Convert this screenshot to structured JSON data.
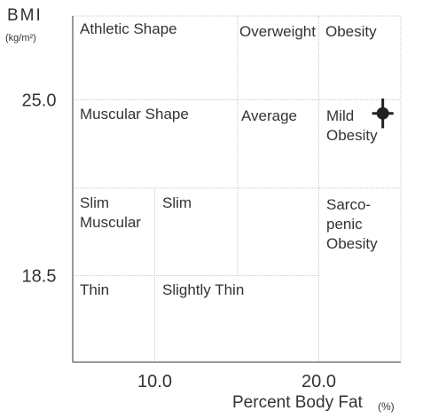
{
  "chart_data": {
    "type": "scatter",
    "y_label": "BMI",
    "y_unit": "(kg/m²)",
    "x_label": "Percent Body Fat",
    "x_unit": "(%)",
    "xlim": [
      5,
      25
    ],
    "ylim": [
      15.3,
      28.1
    ],
    "xticks": [
      {
        "value": 10,
        "label": "10.0"
      },
      {
        "value": 20,
        "label": "20.0"
      }
    ],
    "yticks": [
      {
        "value": 25,
        "label": "25.0"
      },
      18.5
    ],
    "regions": [
      [
        "Athletic Shape"
      ],
      [
        "Overweight"
      ],
      [
        "Obesity"
      ],
      [
        "Muscular Shape"
      ],
      [
        "Average"
      ],
      [
        "Mild",
        "Obesity"
      ],
      [
        "Slim",
        "Muscular"
      ],
      [
        "Slim"
      ],
      [
        "Sarco-",
        "penic",
        "Obesity"
      ],
      [
        "Thin"
      ],
      [
        "Slightly Thin"
      ]
    ],
    "series": [
      {
        "color": "#222222",
        "x": [
          23.9
        ],
        "values": [
          24.5
        ],
        "xerr": [
          0.65
        ],
        "yerr": [
          0.55
        ]
      }
    ]
  }
}
